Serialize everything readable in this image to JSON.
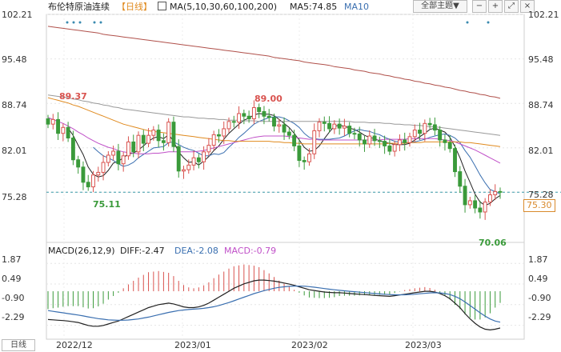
{
  "header": {
    "title": "布伦特原油连续",
    "period_label": "【日线】",
    "ma_label": "MA(5,10,30,60,100,200)",
    "ma5_label": "MA5:74.85",
    "ma10_label": "MA10",
    "theme_button": "全部主题▼"
  },
  "bottom": {
    "period_button": "日线"
  },
  "last_price_tag": "75.30",
  "macd": {
    "title": "MACD(26,12,9)",
    "diff": "DIFF:-2.47",
    "dea": "DEA:-2.08",
    "macd": "MACD:-0.79"
  },
  "colors": {
    "up": "#d9534f",
    "down": "#3a9a3a",
    "ma5": "#222222",
    "ma10": "#3a6fb0",
    "ma30": "#c050c8",
    "ma60": "#e08a1e",
    "ma100": "#999999",
    "ma200": "#b0504a",
    "diff": "#222222",
    "dea": "#3a6fb0"
  },
  "chart_data": [
    {
      "type": "candlestick",
      "title": "布伦特原油连续",
      "y_ticks": [
        "102.21",
        "95.48",
        "88.74",
        "82.01",
        "75.28"
      ],
      "ylim": [
        68.3,
        102.21
      ],
      "x_ticks": [
        "2022/12",
        "2023/01",
        "2023/02",
        "2023/03"
      ],
      "annotations": [
        {
          "text": "89.37",
          "kind": "high"
        },
        {
          "text": "75.11",
          "kind": "low"
        },
        {
          "text": "89.00",
          "kind": "high"
        },
        {
          "text": "70.06",
          "kind": "low"
        }
      ],
      "reference_line": 75.3,
      "series": [
        {
          "name": "MA5",
          "label": "MA5:74.85"
        },
        {
          "name": "MA10"
        },
        {
          "name": "MA30"
        },
        {
          "name": "MA60"
        },
        {
          "name": "MA100"
        },
        {
          "name": "MA200"
        }
      ],
      "closes": [
        85.6,
        86.3,
        84.2,
        85.1,
        83.5,
        80.2,
        79.1,
        76.8,
        76.1,
        77.9,
        78.3,
        79.8,
        80.9,
        81.5,
        79.6,
        80.8,
        82.9,
        81.4,
        83.9,
        82.7,
        83.9,
        84.7,
        83.1,
        82.8,
        85.9,
        82.2,
        78.5,
        78.7,
        79.4,
        80.5,
        79.9,
        81.4,
        82.4,
        84.0,
        83.8,
        84.9,
        86.0,
        85.9,
        87.2,
        86.8,
        86.4,
        88.1,
        87.5,
        86.8,
        86.6,
        85.3,
        85.5,
        84.4,
        83.9,
        82.3,
        80.1,
        79.9,
        81.1,
        84.6,
        85.9,
        85.7,
        84.9,
        85.6,
        85.0,
        85.3,
        84.2,
        84.1,
        83.2,
        82.6,
        83.8,
        83.1,
        83.0,
        82.3,
        81.5,
        82.5,
        83.2,
        82.8,
        83.7,
        84.7,
        84.2,
        85.7,
        85.5,
        84.7,
        83.2,
        82.8,
        81.9,
        78.4,
        76.2,
        73.4,
        74.0,
        72.9,
        72.3,
        73.8,
        74.9,
        75.4,
        75.3
      ],
      "ma_values": {
        "MA5": [
          null,
          null,
          null,
          null,
          85.0,
          83.9,
          82.4,
          81.0,
          79.1,
          78.0,
          77.6,
          77.8,
          78.6,
          79.7,
          80.0,
          80.5,
          81.1,
          81.2,
          81.7,
          82.3,
          83.0,
          83.5,
          83.7,
          83.4,
          84.0,
          83.0,
          81.4,
          80.5,
          79.8,
          79.9,
          79.4,
          80.0,
          80.7,
          81.6,
          82.3,
          83.3,
          84.2,
          84.9,
          85.6,
          86.2,
          86.5,
          87.0,
          87.2,
          87.1,
          87.1,
          86.9,
          86.3,
          85.7,
          85.1,
          84.2,
          83.2,
          82.1,
          81.5,
          81.6,
          82.3,
          83.4,
          84.4,
          85.3,
          85.4,
          85.3,
          85.0,
          84.8,
          84.4,
          83.9,
          83.6,
          83.4,
          83.1,
          82.8,
          82.7,
          82.5,
          82.5,
          82.5,
          82.7,
          83.2,
          83.7,
          84.2,
          84.8,
          85.0,
          84.7,
          84.4,
          83.6,
          82.2,
          80.5,
          78.5,
          76.8,
          75.0,
          73.8,
          73.3,
          73.6,
          74.3,
          74.8
        ],
        "MA10": [
          null,
          null,
          null,
          null,
          null,
          null,
          null,
          null,
          null,
          82.1,
          81.4,
          80.8,
          80.5,
          80.1,
          79.6,
          79.2,
          79.4,
          79.8,
          80.5,
          81.0,
          81.5,
          82.0,
          82.1,
          82.2,
          82.8,
          82.9,
          82.5,
          82.1,
          81.8,
          81.6,
          81.2,
          80.8,
          80.8,
          81.1,
          81.0,
          81.3,
          82.1,
          82.8,
          83.6,
          84.2,
          84.9,
          85.6,
          86.0,
          86.3,
          86.6,
          86.7,
          86.7,
          86.5,
          86.1,
          85.7,
          85.1,
          84.2,
          83.6,
          83.4,
          83.3,
          83.3,
          83.3,
          83.4,
          83.5,
          83.8,
          84.2,
          84.6,
          84.8,
          84.6,
          84.5,
          84.2,
          84.0,
          83.6,
          83.3,
          83.0,
          82.9,
          82.8,
          82.8,
          82.9,
          83.1,
          83.3,
          83.6,
          83.8,
          84.0,
          84.1,
          83.9,
          83.5,
          82.8,
          81.6,
          80.6,
          79.3,
          77.9,
          76.7,
          75.7,
          75.4,
          75.0
        ],
        "MA30": [
          86.6,
          86.3,
          86.0,
          85.7,
          85.3,
          84.9,
          84.4,
          84.0,
          83.5,
          83.1,
          82.7,
          82.4,
          82.1,
          81.9,
          81.6,
          81.4,
          81.3,
          81.2,
          81.1,
          81.1,
          81.1,
          81.2,
          81.2,
          81.3,
          81.4,
          81.4,
          81.4,
          81.4,
          81.4,
          81.4,
          81.5,
          81.6,
          81.8,
          82.0,
          82.2,
          82.4,
          82.6,
          82.8,
          83.0,
          83.2,
          83.4,
          83.6,
          83.7,
          83.8,
          83.8,
          83.8,
          83.8,
          83.8,
          83.7,
          83.6,
          83.5,
          83.4,
          83.3,
          83.3,
          83.2,
          83.2,
          83.2,
          83.2,
          83.2,
          83.2,
          83.2,
          83.2,
          83.2,
          83.2,
          83.2,
          83.2,
          83.2,
          83.3,
          83.3,
          83.3,
          83.3,
          83.3,
          83.4,
          83.4,
          83.4,
          83.4,
          83.4,
          83.4,
          83.3,
          83.2,
          83.1,
          82.9,
          82.6,
          82.3,
          82.0,
          81.7,
          81.3,
          80.9,
          80.5,
          80.1,
          79.7
        ],
        "MA60": [
          89.6,
          89.4,
          89.2,
          89.0,
          88.8,
          88.5,
          88.3,
          88.0,
          87.7,
          87.4,
          87.1,
          86.8,
          86.5,
          86.2,
          85.9,
          85.6,
          85.4,
          85.2,
          85.0,
          84.8,
          84.6,
          84.5,
          84.4,
          84.3,
          84.2,
          84.1,
          84.0,
          83.9,
          83.8,
          83.7,
          83.6,
          83.5,
          83.4,
          83.3,
          83.2,
          83.1,
          83.1,
          83.0,
          83.0,
          83.0,
          83.0,
          83.0,
          83.0,
          83.0,
          83.0,
          82.9,
          82.9,
          82.8,
          82.8,
          82.7,
          82.7,
          82.6,
          82.6,
          82.6,
          82.6,
          82.6,
          82.6,
          82.6,
          82.6,
          82.6,
          82.6,
          82.6,
          82.6,
          82.6,
          82.6,
          82.6,
          82.6,
          82.6,
          82.7,
          82.7,
          82.7,
          82.7,
          82.8,
          82.8,
          82.8,
          82.9,
          82.9,
          82.9,
          82.9,
          82.9,
          82.9,
          82.9,
          82.9,
          82.8,
          82.8,
          82.7,
          82.6,
          82.5,
          82.4,
          82.3,
          82.2
        ],
        "MA100": [
          90.0,
          89.9,
          89.8,
          89.7,
          89.6,
          89.4,
          89.3,
          89.1,
          89.0,
          88.8,
          88.7,
          88.5,
          88.4,
          88.2,
          88.1,
          87.9,
          87.8,
          87.7,
          87.6,
          87.5,
          87.4,
          87.3,
          87.2,
          87.1,
          87.0,
          86.9,
          86.8,
          86.7,
          86.7,
          86.6,
          86.5,
          86.5,
          86.4,
          86.4,
          86.3,
          86.3,
          86.2,
          86.2,
          86.2,
          86.1,
          86.1,
          86.1,
          86.0,
          86.0,
          86.0,
          86.0,
          86.0,
          86.0,
          86.0,
          86.0,
          86.0,
          86.0,
          86.0,
          86.0,
          86.0,
          86.0,
          86.0,
          86.0,
          86.0,
          86.0,
          86.0,
          85.9,
          85.9,
          85.9,
          85.8,
          85.8,
          85.8,
          85.7,
          85.7,
          85.6,
          85.6,
          85.5,
          85.5,
          85.4,
          85.4,
          85.3,
          85.2,
          85.2,
          85.1,
          85.0,
          84.9,
          84.8,
          84.7,
          84.6,
          84.5,
          84.4,
          84.3,
          84.2,
          84.1,
          84.0,
          83.9
        ],
        "MA200": [
          100.4,
          100.3,
          100.2,
          100.1,
          100.0,
          99.9,
          99.8,
          99.7,
          99.6,
          99.5,
          99.4,
          99.2,
          99.1,
          99.0,
          98.9,
          98.8,
          98.7,
          98.6,
          98.5,
          98.4,
          98.3,
          98.2,
          98.1,
          98.0,
          97.9,
          97.8,
          97.7,
          97.6,
          97.5,
          97.4,
          97.3,
          97.2,
          97.1,
          97.0,
          96.9,
          96.8,
          96.7,
          96.6,
          96.5,
          96.4,
          96.3,
          96.2,
          96.1,
          96.0,
          95.9,
          95.7,
          95.6,
          95.5,
          95.4,
          95.3,
          95.2,
          95.0,
          94.9,
          94.8,
          94.7,
          94.6,
          94.5,
          94.3,
          94.2,
          94.1,
          94.0,
          93.8,
          93.7,
          93.6,
          93.4,
          93.3,
          93.2,
          93.0,
          92.9,
          92.7,
          92.6,
          92.4,
          92.3,
          92.1,
          92.0,
          91.8,
          91.7,
          91.5,
          91.4,
          91.2,
          91.1,
          90.9,
          90.7,
          90.6,
          90.4,
          90.3,
          90.1,
          90.0,
          89.8,
          89.7,
          89.5
        ]
      }
    },
    {
      "type": "bar+line",
      "title": "MACD(26,12,9)",
      "y_ticks": [
        "1.87",
        "0.49",
        "-0.90",
        "-2.29"
      ],
      "ylim": [
        -2.9,
        2.1
      ],
      "series": [
        {
          "name": "DIFF",
          "label": "DIFF:-2.47",
          "values": [
            -1.9,
            -1.92,
            -1.95,
            -1.97,
            -2.0,
            -2.05,
            -2.1,
            -2.2,
            -2.3,
            -2.35,
            -2.35,
            -2.3,
            -2.2,
            -2.1,
            -2.0,
            -1.85,
            -1.7,
            -1.55,
            -1.4,
            -1.25,
            -1.1,
            -1.0,
            -0.9,
            -0.85,
            -0.8,
            -0.85,
            -0.95,
            -1.05,
            -1.1,
            -1.1,
            -1.05,
            -0.95,
            -0.8,
            -0.6,
            -0.4,
            -0.2,
            0.0,
            0.2,
            0.35,
            0.5,
            0.6,
            0.7,
            0.75,
            0.75,
            0.72,
            0.68,
            0.62,
            0.55,
            0.48,
            0.4,
            0.3,
            0.2,
            0.1,
            0.05,
            0.0,
            -0.05,
            -0.08,
            -0.1,
            -0.1,
            -0.12,
            -0.15,
            -0.18,
            -0.2,
            -0.22,
            -0.25,
            -0.28,
            -0.3,
            -0.32,
            -0.34,
            -0.3,
            -0.25,
            -0.2,
            -0.15,
            -0.1,
            -0.05,
            0.0,
            0.0,
            -0.05,
            -0.15,
            -0.3,
            -0.5,
            -0.8,
            -1.1,
            -1.5,
            -1.85,
            -2.15,
            -2.4,
            -2.55,
            -2.6,
            -2.55,
            -2.47
          ]
        },
        {
          "name": "DEA",
          "label": "DEA:-2.08",
          "values": [
            -1.3,
            -1.35,
            -1.4,
            -1.45,
            -1.5,
            -1.55,
            -1.6,
            -1.66,
            -1.72,
            -1.78,
            -1.84,
            -1.88,
            -1.92,
            -1.94,
            -1.95,
            -1.95,
            -1.93,
            -1.9,
            -1.86,
            -1.8,
            -1.74,
            -1.66,
            -1.58,
            -1.5,
            -1.42,
            -1.36,
            -1.3,
            -1.26,
            -1.23,
            -1.2,
            -1.18,
            -1.15,
            -1.1,
            -1.04,
            -0.96,
            -0.86,
            -0.76,
            -0.64,
            -0.52,
            -0.4,
            -0.28,
            -0.16,
            -0.06,
            0.04,
            0.12,
            0.2,
            0.26,
            0.3,
            0.33,
            0.35,
            0.35,
            0.34,
            0.31,
            0.27,
            0.23,
            0.18,
            0.14,
            0.1,
            0.06,
            0.03,
            0.0,
            -0.03,
            -0.06,
            -0.09,
            -0.12,
            -0.15,
            -0.18,
            -0.2,
            -0.22,
            -0.24,
            -0.24,
            -0.24,
            -0.22,
            -0.2,
            -0.17,
            -0.14,
            -0.11,
            -0.1,
            -0.11,
            -0.15,
            -0.22,
            -0.34,
            -0.5,
            -0.72,
            -0.96,
            -1.2,
            -1.45,
            -1.67,
            -1.86,
            -2.0,
            -2.08
          ]
        }
      ]
    }
  ]
}
